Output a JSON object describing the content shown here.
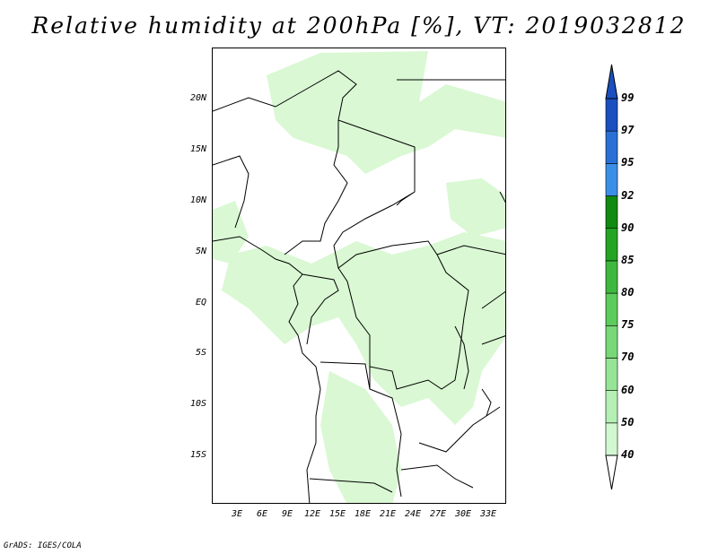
{
  "title": "Relative humidity at 200hPa [%], VT: 2019032812",
  "credit": "GrADS: IGES/COLA",
  "map": {
    "projection": "lat-lon",
    "region": "Central Africa",
    "lat_range": [
      -20,
      25
    ],
    "lon_range": [
      0,
      35
    ],
    "lat_ticks": [
      "20N",
      "15N",
      "10N",
      "5N",
      "EQ",
      "5S",
      "10S",
      "15S"
    ],
    "lon_ticks": [
      "3E",
      "6E",
      "9E",
      "12E",
      "15E",
      "18E",
      "21E",
      "24E",
      "27E",
      "30E",
      "33E"
    ]
  },
  "colorbar": {
    "levels": [
      "40",
      "50",
      "60",
      "70",
      "75",
      "80",
      "85",
      "90",
      "92",
      "95",
      "97",
      "99"
    ],
    "colors": [
      "#ebfceb",
      "#d2f8d2",
      "#b4f0b4",
      "#96e596",
      "#78d878",
      "#5ccc5c",
      "#3eb83e",
      "#23a523",
      "#118a11",
      "#3c8fe6",
      "#2a6fd6",
      "#1a4fc0"
    ],
    "upper_cap": "#1a4fc0",
    "lower_cap": "#ffffff"
  },
  "colors": {
    "light_green": "#d9f8d3",
    "border": "#000000"
  }
}
